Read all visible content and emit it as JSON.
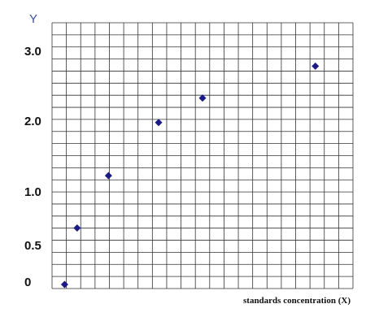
{
  "chart_data": {
    "type": "scatter",
    "xlabel": "standards concentration (X)",
    "ylabel": "Y",
    "y_tick_labels": [
      "3.0",
      "2.0",
      "1.0",
      "0.5",
      "0"
    ],
    "grid": true,
    "points": [
      {
        "x": 1.0,
        "y": 0.05
      },
      {
        "x": 2.0,
        "y": 0.74
      },
      {
        "x": 4.5,
        "y": 1.38
      },
      {
        "x": 8.5,
        "y": 2.03
      },
      {
        "x": 12.0,
        "y": 2.33
      },
      {
        "x": 21.0,
        "y": 2.72
      }
    ],
    "xlim": [
      0,
      24
    ],
    "ylim": [
      0,
      3.25
    ],
    "marker_color": "#1a1a8c",
    "grid_color": "#333333"
  }
}
